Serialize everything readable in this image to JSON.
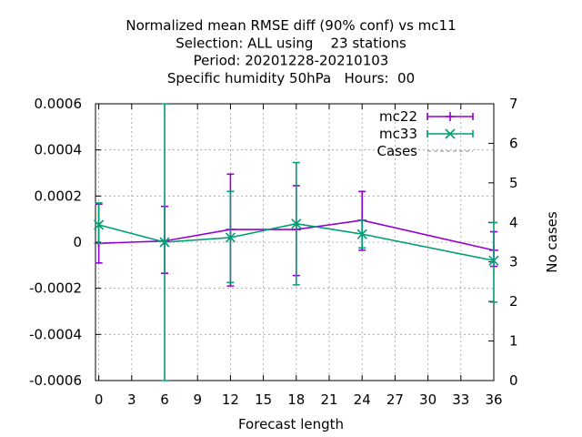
{
  "chart_data": {
    "type": "line",
    "title_lines": [
      "Normalized mean RMSE diff (90% conf) vs mc11",
      "Selection: ALL using    23 stations",
      "Period: 20201228-20210103",
      "Specific humidity 50hPa   Hours:  00"
    ],
    "xlabel": "Forecast length",
    "ylabel": "",
    "y2label": "No cases",
    "xlim": [
      -0.3,
      36
    ],
    "ylim": [
      -0.0006,
      0.0006
    ],
    "y2lim": [
      0,
      7
    ],
    "xticks": [
      0,
      3,
      6,
      9,
      12,
      15,
      18,
      21,
      24,
      27,
      30,
      33,
      36
    ],
    "xtick_labels": [
      "0",
      "3",
      "6",
      "9",
      "12",
      "15",
      "18",
      "21",
      "24",
      "27",
      "30",
      "33",
      "36"
    ],
    "yticks": [
      -0.0006,
      -0.0004,
      -0.0002,
      0,
      0.0002,
      0.0004,
      0.0006
    ],
    "ytick_labels": [
      "-0.0006",
      "-0.0004",
      "-0.0002",
      "0",
      "0.0002",
      "0.0004",
      "0.0006"
    ],
    "y2ticks": [
      0,
      1,
      2,
      3,
      4,
      5,
      6,
      7
    ],
    "y2tick_labels": [
      "0",
      "1",
      "2",
      "3",
      "4",
      "5",
      "6",
      "7"
    ],
    "grid": true,
    "legend_position": "top-right",
    "series": [
      {
        "name": "mc22",
        "color": "#9400d3",
        "marker": "plus",
        "x": [
          0,
          6,
          12,
          18,
          24,
          36
        ],
        "y": [
          -5e-06,
          5e-06,
          5.5e-05,
          5.5e-05,
          9.5e-05,
          -3.5e-05
        ],
        "err_low": [
          -9e-05,
          -0.000135,
          -0.00019,
          -0.000145,
          -3.5e-05,
          -0.000105
        ],
        "err_high": [
          0.000165,
          0.000155,
          0.000295,
          0.000245,
          0.00022,
          4.5e-05
        ]
      },
      {
        "name": "mc33",
        "color": "#009e73",
        "marker": "cross",
        "x": [
          0,
          6,
          12,
          18,
          24,
          36
        ],
        "y": [
          7.5e-05,
          0.0,
          2e-05,
          8e-05,
          3.5e-05,
          -8e-05
        ],
        "err_low": [
          -5e-06,
          -0.0006,
          -0.000175,
          -0.000185,
          -2.5e-05,
          -0.00026
        ],
        "err_high": [
          0.00017,
          0.0006,
          0.00022,
          0.000345,
          9.5e-05,
          8.5e-05
        ]
      },
      {
        "name": "Cases",
        "color": "#a0a0a0",
        "style": "dashed",
        "axis": "y2",
        "x": [],
        "y": []
      }
    ]
  }
}
